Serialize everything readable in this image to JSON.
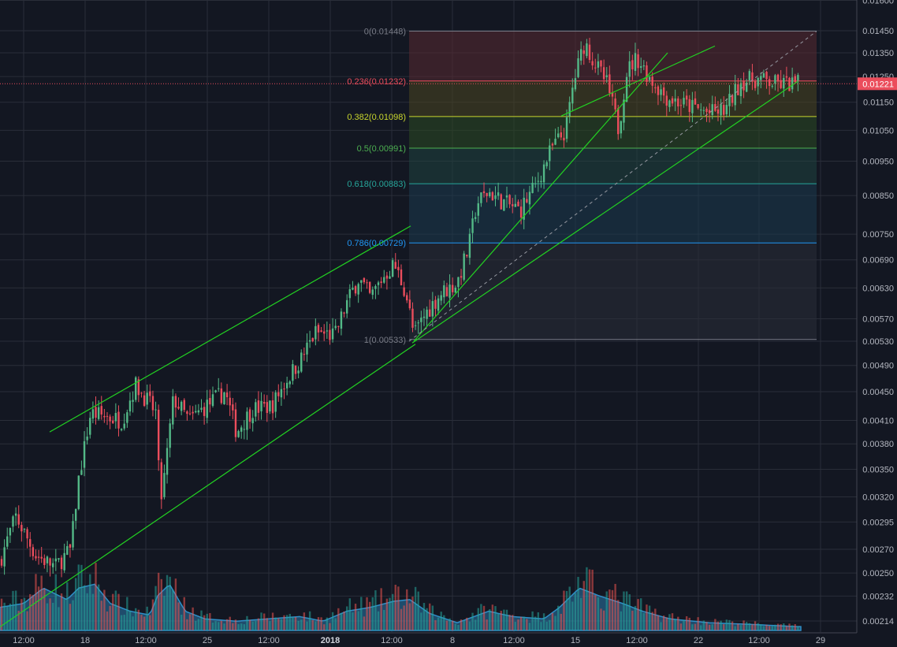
{
  "chart_data": {
    "type": "candlestick",
    "scale": "log",
    "grid": true,
    "colors": {
      "background": "#131722",
      "grid": "#2a2e39",
      "axis_text": "#b2b5be",
      "up": "#53b987",
      "down": "#eb4d5c",
      "volume_up": "#26a69a",
      "volume_down": "#ef5350",
      "volume_area": "#2f8fc7",
      "trend_line": "#22d122",
      "price_marker": "#eb4d5c",
      "dashed_line": "#9598a1"
    },
    "ylim": [
      0.0021,
      0.016
    ],
    "y_ticks": [
      "0.00214",
      "0.00232",
      "0.00250",
      "0.00270",
      "0.00295",
      "0.00320",
      "0.00350",
      "0.00380",
      "0.00410",
      "0.00450",
      "0.00490",
      "0.00530",
      "0.00570",
      "0.00630",
      "0.00690",
      "0.00750",
      "0.00850",
      "0.00950",
      "0.01050",
      "0.01150",
      "0.01250",
      "0.01350",
      "0.01450",
      "0.01600"
    ],
    "x_ticks": [
      {
        "label": "12:00",
        "bold": false
      },
      {
        "label": "18",
        "bold": false
      },
      {
        "label": "12:00",
        "bold": false
      },
      {
        "label": "25",
        "bold": false
      },
      {
        "label": "12:00",
        "bold": false
      },
      {
        "label": "2018",
        "bold": true
      },
      {
        "label": "12:00",
        "bold": false
      },
      {
        "label": "8",
        "bold": false
      },
      {
        "label": "12:00",
        "bold": false
      },
      {
        "label": "15",
        "bold": false
      },
      {
        "label": "12:00",
        "bold": false
      },
      {
        "label": "22",
        "bold": false
      },
      {
        "label": "12:00",
        "bold": false
      },
      {
        "label": "29",
        "bold": false
      }
    ],
    "last_price": "0.01221",
    "last_price_value": 0.01221,
    "fibonacci": {
      "high": 0.01448,
      "low": 0.00533,
      "levels": [
        {
          "label": "0(0.01448)",
          "value": 0.01448,
          "color": "#787b86",
          "fill": "#5a2a32"
        },
        {
          "label": "0.236(0.01232)",
          "value": 0.01232,
          "color": "#eb4d5c",
          "fill": "#4a4520"
        },
        {
          "label": "0.382(0.01098)",
          "value": 0.01098,
          "color": "#c8d62d",
          "fill": "#2b4a22"
        },
        {
          "label": "0.5(0.00991)",
          "value": 0.00991,
          "color": "#4caf50",
          "fill": "#1f4440"
        },
        {
          "label": "0.618(0.00883)",
          "value": 0.00883,
          "color": "#26a69a",
          "fill": "#1c3a4e"
        },
        {
          "label": "0.786(0.00729)",
          "value": 0.00729,
          "color": "#2196f3",
          "fill": "#2a2d38"
        },
        {
          "label": "1(0.00533)",
          "value": 0.00533,
          "color": "#787b86",
          "fill": null
        }
      ]
    },
    "price_anchors": [
      [
        0,
        0.0026
      ],
      [
        20,
        0.003
      ],
      [
        45,
        0.00265
      ],
      [
        70,
        0.00255
      ],
      [
        90,
        0.0027
      ],
      [
        100,
        0.0034
      ],
      [
        108,
        0.0038
      ],
      [
        115,
        0.0042
      ],
      [
        135,
        0.00415
      ],
      [
        155,
        0.0041
      ],
      [
        172,
        0.0046
      ],
      [
        185,
        0.0044
      ],
      [
        198,
        0.0042
      ],
      [
        203,
        0.0031
      ],
      [
        210,
        0.0035
      ],
      [
        220,
        0.0044
      ],
      [
        240,
        0.0041
      ],
      [
        262,
        0.0043
      ],
      [
        285,
        0.0045
      ],
      [
        300,
        0.00395
      ],
      [
        320,
        0.00425
      ],
      [
        345,
        0.0043
      ],
      [
        365,
        0.0047
      ],
      [
        382,
        0.005
      ],
      [
        400,
        0.00545
      ],
      [
        425,
        0.0054
      ],
      [
        440,
        0.006
      ],
      [
        455,
        0.0065
      ],
      [
        470,
        0.0061
      ],
      [
        485,
        0.0065
      ],
      [
        500,
        0.0068
      ],
      [
        515,
        0.0062
      ],
      [
        525,
        0.0054
      ],
      [
        540,
        0.0058
      ],
      [
        560,
        0.0062
      ],
      [
        580,
        0.0064
      ],
      [
        595,
        0.0072
      ],
      [
        605,
        0.0083
      ],
      [
        620,
        0.0086
      ],
      [
        640,
        0.0083
      ],
      [
        660,
        0.0081
      ],
      [
        680,
        0.0088
      ],
      [
        700,
        0.0099
      ],
      [
        718,
        0.0105
      ],
      [
        728,
        0.0123
      ],
      [
        742,
        0.014
      ],
      [
        752,
        0.0132
      ],
      [
        770,
        0.0122
      ],
      [
        785,
        0.0105
      ],
      [
        795,
        0.0127
      ],
      [
        808,
        0.0133
      ],
      [
        825,
        0.0124
      ],
      [
        845,
        0.0117
      ],
      [
        870,
        0.0114
      ],
      [
        900,
        0.0111
      ],
      [
        920,
        0.0112
      ],
      [
        940,
        0.0123
      ],
      [
        960,
        0.0124
      ],
      [
        985,
        0.0122
      ],
      [
        1010,
        0.01221
      ]
    ],
    "volume_anchors": [
      [
        0,
        0.3
      ],
      [
        30,
        0.35
      ],
      [
        55,
        0.55
      ],
      [
        85,
        0.4
      ],
      [
        100,
        0.55
      ],
      [
        120,
        0.6
      ],
      [
        140,
        0.35
      ],
      [
        165,
        0.25
      ],
      [
        190,
        0.2
      ],
      [
        200,
        0.45
      ],
      [
        215,
        0.6
      ],
      [
        235,
        0.25
      ],
      [
        260,
        0.15
      ],
      [
        300,
        0.12
      ],
      [
        340,
        0.15
      ],
      [
        380,
        0.18
      ],
      [
        410,
        0.12
      ],
      [
        440,
        0.25
      ],
      [
        470,
        0.3
      ],
      [
        500,
        0.38
      ],
      [
        520,
        0.4
      ],
      [
        545,
        0.22
      ],
      [
        580,
        0.1
      ],
      [
        620,
        0.25
      ],
      [
        650,
        0.18
      ],
      [
        690,
        0.15
      ],
      [
        710,
        0.3
      ],
      [
        735,
        0.55
      ],
      [
        760,
        0.45
      ],
      [
        790,
        0.35
      ],
      [
        815,
        0.25
      ],
      [
        850,
        0.15
      ],
      [
        900,
        0.1
      ],
      [
        950,
        0.08
      ],
      [
        1010,
        0.05
      ]
    ],
    "candle_count": 280,
    "trend_lines": [
      {
        "name": "channel-top",
        "p1": [
          63,
          0.00395
        ],
        "p2": [
          521,
          0.0077
        ]
      },
      {
        "name": "channel-bottom",
        "p1": [
          0,
          0.0021
        ],
        "p2": [
          527,
          0.00525
        ]
      },
      {
        "name": "support-long",
        "p1": [
          523,
          0.00527
        ],
        "p2": [
          1012,
          0.0123
        ]
      },
      {
        "name": "support-short",
        "p1": [
          525,
          0.0053
        ],
        "p2": [
          847,
          0.0135
        ]
      },
      {
        "name": "resistance-short",
        "p1": [
          712,
          0.011
        ],
        "p2": [
          907,
          0.0138
        ]
      }
    ],
    "dashed_line": {
      "p1": [
        519,
        0.0053
      ],
      "p2": [
        1036,
        0.01448
      ]
    }
  }
}
